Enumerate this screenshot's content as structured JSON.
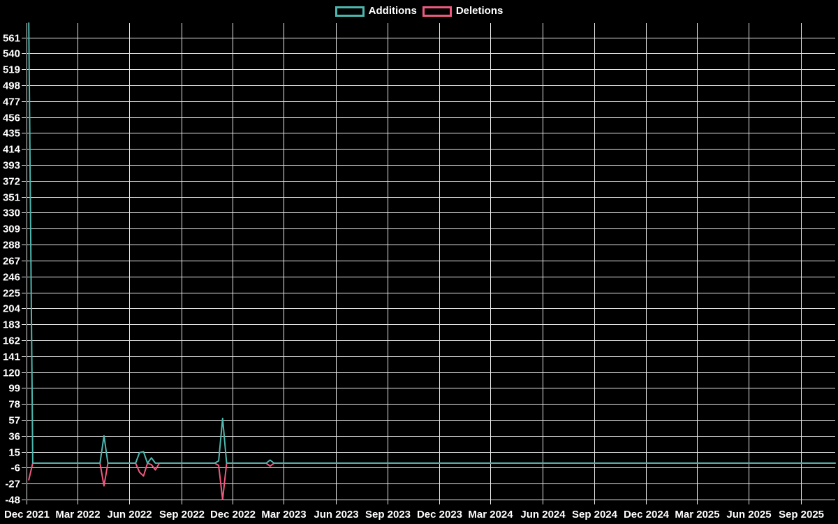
{
  "chart_data": {
    "type": "line",
    "title": "",
    "background_color": "#000000",
    "grid_color": "#e9e9e9",
    "axis_text_color": "#ffffff",
    "legend": [
      {
        "label": "Additions",
        "color": "#4db7ae"
      },
      {
        "label": "Deletions",
        "color": "#ee5a7f"
      }
    ],
    "legend_position": "top-center",
    "grid": "on",
    "x_axis": {
      "ticks": [
        {
          "date": "2021-12-01",
          "label": "Dec 2021"
        },
        {
          "date": "2022-03-01",
          "label": "Mar 2022"
        },
        {
          "date": "2022-06-01",
          "label": "Jun 2022"
        },
        {
          "date": "2022-09-01",
          "label": "Sep 2022"
        },
        {
          "date": "2022-12-01",
          "label": "Dec 2022"
        },
        {
          "date": "2023-03-01",
          "label": "Mar 2023"
        },
        {
          "date": "2023-06-01",
          "label": "Jun 2023"
        },
        {
          "date": "2023-09-01",
          "label": "Sep 2023"
        },
        {
          "date": "2023-12-01",
          "label": "Dec 2023"
        },
        {
          "date": "2024-03-01",
          "label": "Mar 2024"
        },
        {
          "date": "2024-06-01",
          "label": "Jun 2024"
        },
        {
          "date": "2024-09-01",
          "label": "Sep 2024"
        },
        {
          "date": "2024-12-01",
          "label": "Dec 2024"
        },
        {
          "date": "2025-03-01",
          "label": "Mar 2025"
        },
        {
          "date": "2025-06-01",
          "label": "Jun 2025"
        },
        {
          "date": "2025-09-01",
          "label": "Sep 2025"
        }
      ],
      "range": [
        "2021-12-01",
        "2025-11-01"
      ]
    },
    "y_axis": {
      "tick_min": -48,
      "tick_max": 561,
      "tick_step": 21,
      "tick_labels": [
        "561",
        "540",
        "519",
        "498",
        "477",
        "456",
        "435",
        "414",
        "393",
        "372",
        "351",
        "330",
        "309",
        "288",
        "267",
        "246",
        "225",
        "204",
        "183",
        "162",
        "141",
        "120",
        "99",
        "78",
        "57",
        "36",
        "15",
        "-6",
        "-27",
        "-48"
      ],
      "ylim": [
        -48,
        580
      ]
    },
    "series": [
      {
        "name": "Deletions",
        "color": "#ee5a7f",
        "points": [
          [
            "2021-12-05",
            -22
          ],
          [
            "2021-12-12",
            0
          ],
          [
            "2022-04-10",
            0
          ],
          [
            "2022-04-17",
            -30
          ],
          [
            "2022-04-24",
            0
          ],
          [
            "2022-06-12",
            0
          ],
          [
            "2022-06-19",
            -12
          ],
          [
            "2022-06-26",
            -17
          ],
          [
            "2022-07-03",
            0
          ],
          [
            "2022-07-10",
            -2
          ],
          [
            "2022-07-17",
            -9
          ],
          [
            "2022-07-24",
            0
          ],
          [
            "2022-10-30",
            0
          ],
          [
            "2022-11-06",
            -3
          ],
          [
            "2022-11-13",
            -48
          ],
          [
            "2022-11-20",
            0
          ],
          [
            "2023-01-29",
            0
          ],
          [
            "2023-02-05",
            -4
          ],
          [
            "2023-02-12",
            0
          ],
          [
            "2025-11-01",
            0
          ]
        ]
      },
      {
        "name": "Additions",
        "color": "#4db7ae",
        "points": [
          [
            "2021-12-05",
            580
          ],
          [
            "2021-12-12",
            0
          ],
          [
            "2022-04-10",
            0
          ],
          [
            "2022-04-17",
            36
          ],
          [
            "2022-04-24",
            0
          ],
          [
            "2022-06-12",
            0
          ],
          [
            "2022-06-19",
            14
          ],
          [
            "2022-06-26",
            15
          ],
          [
            "2022-07-03",
            0
          ],
          [
            "2022-07-10",
            7
          ],
          [
            "2022-07-17",
            0
          ],
          [
            "2022-10-30",
            0
          ],
          [
            "2022-11-06",
            3
          ],
          [
            "2022-11-13",
            59
          ],
          [
            "2022-11-20",
            0
          ],
          [
            "2023-01-29",
            0
          ],
          [
            "2023-02-05",
            4
          ],
          [
            "2023-02-12",
            0
          ],
          [
            "2025-11-01",
            0
          ]
        ]
      }
    ]
  }
}
